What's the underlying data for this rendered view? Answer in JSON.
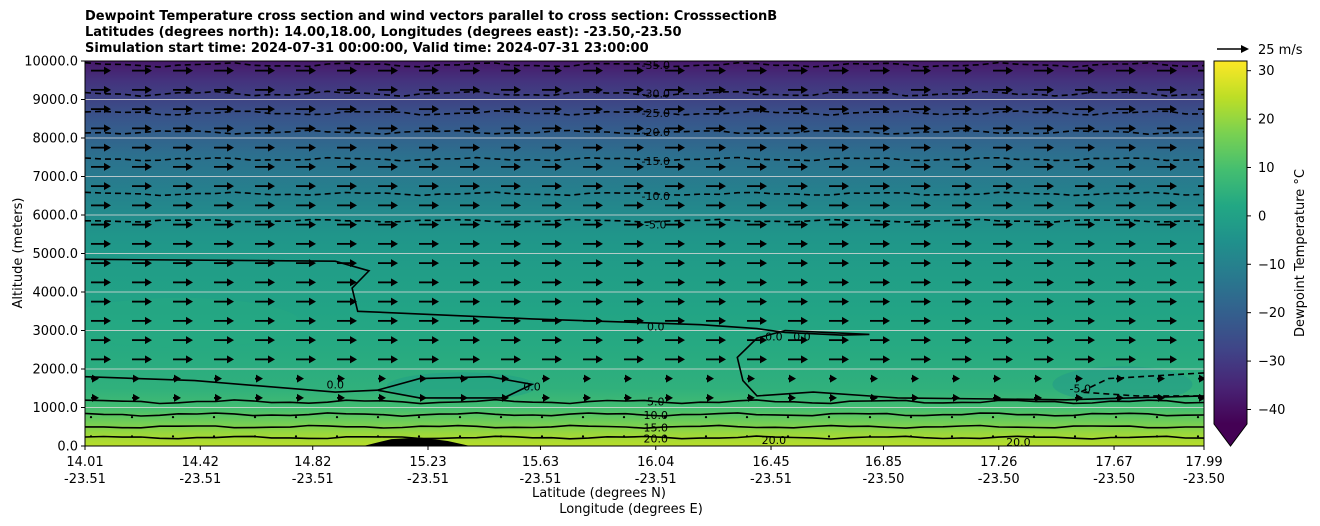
{
  "chart_data": {
    "type": "contour",
    "title_lines": [
      "Dewpoint Temperature cross section and wind vectors parallel to cross section: CrosssectionB",
      "Latitudes (degrees north): 14.00,18.00, Longitudes (degrees east): -23.50,-23.50",
      "Simulation start time: 2024-07-31 00:00:00, Valid time: 2024-07-31 23:00:00"
    ],
    "xlabel_lat": "Latitude (degrees N)",
    "xlabel_lon": "Longitude (degrees E)",
    "ylabel": "Altitude (meters)",
    "xlim": [
      14.01,
      17.99
    ],
    "ylim": [
      0,
      10000
    ],
    "x_ticks": [
      {
        "lat": "14.01",
        "lon": "-23.51",
        "value": 14.01
      },
      {
        "lat": "14.42",
        "lon": "-23.51",
        "value": 14.42
      },
      {
        "lat": "14.82",
        "lon": "-23.51",
        "value": 14.82
      },
      {
        "lat": "15.23",
        "lon": "-23.51",
        "value": 15.23
      },
      {
        "lat": "15.63",
        "lon": "-23.51",
        "value": 15.63
      },
      {
        "lat": "16.04",
        "lon": "-23.51",
        "value": 16.04
      },
      {
        "lat": "16.45",
        "lon": "-23.51",
        "value": 16.45
      },
      {
        "lat": "16.85",
        "lon": "-23.50",
        "value": 16.85
      },
      {
        "lat": "17.26",
        "lon": "-23.50",
        "value": 17.26
      },
      {
        "lat": "17.67",
        "lon": "-23.50",
        "value": 17.67
      },
      {
        "lat": "17.99",
        "lon": "-23.50",
        "value": 17.99
      }
    ],
    "y_ticks": [
      "0.0",
      "1000.0",
      "2000.0",
      "3000.0",
      "4000.0",
      "5000.0",
      "6000.0",
      "7000.0",
      "8000.0",
      "9000.0",
      "10000.0"
    ],
    "y_tick_values": [
      0,
      1000,
      2000,
      3000,
      4000,
      5000,
      6000,
      7000,
      8000,
      9000,
      10000
    ],
    "colorbar": {
      "label": "Dewpoint Temperature $^\\circ$C",
      "label_text": "Dewpoint Temperature",
      "label_unit": "°C",
      "ticks": [
        "30",
        "20",
        "10",
        "0",
        "−10",
        "−20",
        "−30",
        "−40"
      ],
      "tick_values": [
        30,
        20,
        10,
        0,
        -10,
        -20,
        -30,
        -40
      ],
      "range": [
        -43,
        32
      ],
      "extend": "min",
      "colormap": "viridis"
    },
    "quiver_key": {
      "label": "25 m/s",
      "magnitude": 25
    },
    "contour_levels_labeled": [
      {
        "text": "-35.0",
        "x": 16.04,
        "y": 9900
      },
      {
        "text": "-30.0",
        "x": 16.04,
        "y": 9150
      },
      {
        "text": "-25.0",
        "x": 16.04,
        "y": 8650
      },
      {
        "text": "-20.0",
        "x": 16.04,
        "y": 8150
      },
      {
        "text": "-15.0",
        "x": 16.04,
        "y": 7400
      },
      {
        "text": "-10.0",
        "x": 16.04,
        "y": 6500
      },
      {
        "text": "-5.0",
        "x": 16.04,
        "y": 5750
      },
      {
        "text": "0.0",
        "x": 16.04,
        "y": 3100
      },
      {
        "text": "0.0",
        "x": 14.9,
        "y": 1600
      },
      {
        "text": "0.0",
        "x": 15.6,
        "y": 1550
      },
      {
        "text": "0.0",
        "x": 16.46,
        "y": 2850
      },
      {
        "text": "0.0",
        "x": 16.56,
        "y": 2850
      },
      {
        "text": "-5.0",
        "x": 17.55,
        "y": 1500
      },
      {
        "text": "5.0",
        "x": 16.04,
        "y": 1150
      },
      {
        "text": "10.0",
        "x": 16.04,
        "y": 800
      },
      {
        "text": "15.0",
        "x": 16.04,
        "y": 480
      },
      {
        "text": "20.0",
        "x": 16.04,
        "y": 200
      },
      {
        "text": "20.0",
        "x": 16.46,
        "y": 150
      },
      {
        "text": "20.0",
        "x": 17.33,
        "y": 100
      }
    ],
    "background_field": {
      "description_rows": [
        {
          "z": 0,
          "t": 24
        },
        {
          "z": 300,
          "t": 21
        },
        {
          "z": 600,
          "t": 16
        },
        {
          "z": 1000,
          "t": 9
        },
        {
          "z": 1500,
          "t": 5
        },
        {
          "z": 2500,
          "t": 3
        },
        {
          "z": 3500,
          "t": 1
        },
        {
          "z": 4500,
          "t": -1
        },
        {
          "z": 5500,
          "t": -4
        },
        {
          "z": 6500,
          "t": -10
        },
        {
          "z": 7500,
          "t": -15
        },
        {
          "z": 8500,
          "t": -23
        },
        {
          "z": 9500,
          "t": -32
        },
        {
          "z": 10000,
          "t": -38
        }
      ]
    }
  }
}
